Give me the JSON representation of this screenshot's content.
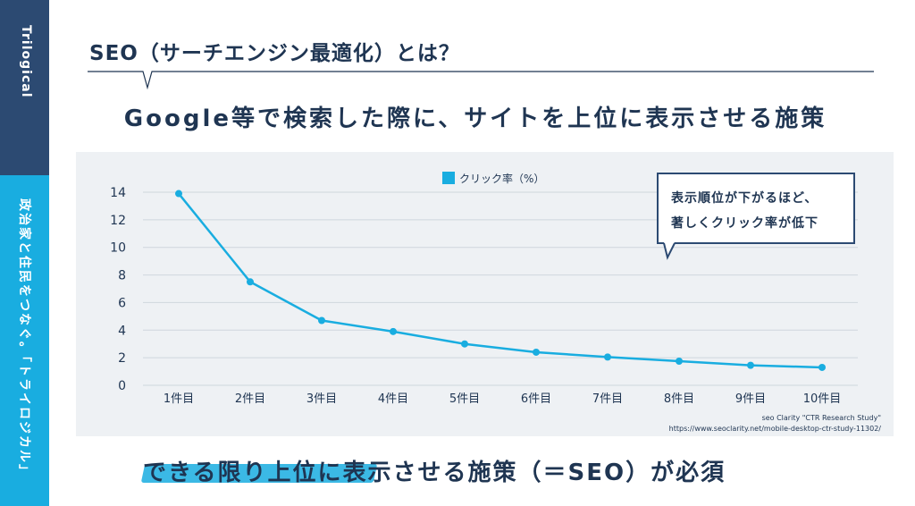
{
  "sidebar": {
    "brand": "Trilogical",
    "tagline": "政治家と住民をつなぐ。「トライロジカル」"
  },
  "title": "SEO（サーチエンジン最適化）とは？",
  "subtitle": "Google等で検索した際に、サイトを上位に表示させる施策",
  "callout": {
    "line1": "表示順位が下がるほど、",
    "line2": "著しくクリック率が低下"
  },
  "source": {
    "line1": "seo Clarity \"CTR Research Study\"",
    "line2": "https://www.seoclarity.net/mobile-desktop-ctr-study-11302/"
  },
  "conclusion": "できる限り上位に表示させる施策（＝SEO）が必須",
  "colors": {
    "navy": "#2c4a72",
    "accent": "#19ade0",
    "text": "#1f3552",
    "panel": "#eef1f4"
  },
  "chart_data": {
    "type": "line",
    "categories": [
      "1件目",
      "2件目",
      "3件目",
      "4件目",
      "5件目",
      "6件目",
      "7件目",
      "8件目",
      "9件目",
      "10件目"
    ],
    "series": [
      {
        "name": "クリック率（%）",
        "values": [
          13.9,
          7.5,
          4.7,
          3.9,
          3.0,
          2.4,
          2.05,
          1.75,
          1.45,
          1.3
        ],
        "color": "#19ade0"
      }
    ],
    "yticks": [
      "0",
      "2",
      "4",
      "6",
      "8",
      "10",
      "12",
      "14"
    ],
    "ylim": [
      0,
      14
    ],
    "grid": true,
    "legend": "top-center"
  }
}
